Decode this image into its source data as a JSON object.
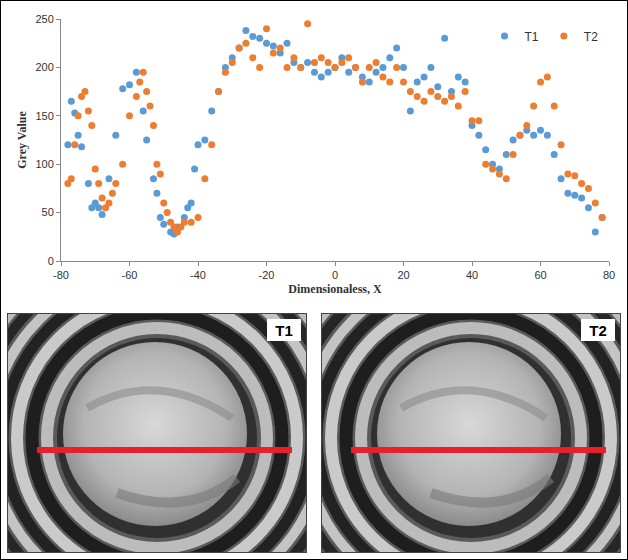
{
  "chart_data": {
    "type": "scatter",
    "xlabel": "Dimensionaless, X",
    "ylabel": "Grey Value",
    "xlim": [
      -80,
      80
    ],
    "xticks": [
      -80,
      -60,
      -40,
      -20,
      0,
      20,
      40,
      60,
      80
    ],
    "ylim": [
      0,
      250
    ],
    "yticks": [
      0,
      50,
      100,
      150,
      200,
      250
    ],
    "grid": false,
    "legend": "upper right",
    "marker": "circle",
    "series": [
      {
        "name": "T1",
        "color": "#5b9bd5",
        "x": [
          -78,
          -77,
          -76,
          -75,
          -74,
          -72,
          -71,
          -70,
          -69,
          -68,
          -66,
          -64,
          -62,
          -60,
          -58,
          -56,
          -55,
          -53,
          -52,
          -51,
          -50,
          -48,
          -47,
          -46,
          -44,
          -43,
          -42,
          -41,
          -40,
          -38,
          -36,
          -34,
          -32,
          -30,
          -28,
          -26,
          -24,
          -22,
          -20,
          -18,
          -16,
          -14,
          -12,
          -10,
          -8,
          -6,
          -4,
          -2,
          0,
          2,
          4,
          6,
          8,
          10,
          12,
          14,
          16,
          18,
          20,
          22,
          24,
          26,
          28,
          30,
          32,
          34,
          36,
          38,
          40,
          42,
          44,
          46,
          48,
          50,
          52,
          54,
          56,
          58,
          60,
          62,
          64,
          66,
          68,
          70,
          72,
          74,
          76,
          78
        ],
        "values": [
          120,
          165,
          153,
          130,
          118,
          80,
          55,
          60,
          55,
          48,
          85,
          130,
          178,
          182,
          195,
          155,
          125,
          85,
          70,
          45,
          38,
          30,
          28,
          35,
          45,
          55,
          60,
          95,
          120,
          125,
          155,
          175,
          200,
          210,
          220,
          238,
          232,
          230,
          225,
          222,
          215,
          225,
          205,
          200,
          205,
          195,
          190,
          195,
          200,
          210,
          195,
          200,
          190,
          185,
          195,
          200,
          210,
          220,
          200,
          155,
          185,
          190,
          200,
          180,
          230,
          175,
          190,
          185,
          140,
          130,
          115,
          100,
          95,
          110,
          125,
          130,
          135,
          130,
          135,
          130,
          110,
          85,
          70,
          68,
          65,
          55,
          30,
          45
        ]
      },
      {
        "name": "T2",
        "color": "#ed7d31",
        "x": [
          -78,
          -77,
          -76,
          -75,
          -74,
          -73,
          -72,
          -71,
          -70,
          -69,
          -68,
          -67,
          -66,
          -65,
          -64,
          -62,
          -60,
          -58,
          -57,
          -56,
          -55,
          -54,
          -53,
          -52,
          -51,
          -50,
          -49,
          -48,
          -47,
          -46,
          -45,
          -44,
          -42,
          -40,
          -38,
          -36,
          -34,
          -32,
          -30,
          -28,
          -26,
          -24,
          -22,
          -20,
          -18,
          -16,
          -14,
          -12,
          -10,
          -8,
          -6,
          -4,
          -2,
          0,
          2,
          4,
          6,
          8,
          10,
          12,
          14,
          16,
          18,
          20,
          22,
          24,
          26,
          28,
          30,
          32,
          34,
          36,
          38,
          40,
          42,
          44,
          46,
          48,
          50,
          52,
          54,
          56,
          58,
          60,
          62,
          64,
          66,
          68,
          70,
          72,
          74,
          76,
          78
        ],
        "values": [
          80,
          85,
          120,
          150,
          170,
          175,
          155,
          140,
          95,
          80,
          65,
          55,
          60,
          70,
          80,
          100,
          150,
          170,
          185,
          195,
          175,
          160,
          140,
          100,
          90,
          60,
          50,
          40,
          35,
          30,
          35,
          40,
          40,
          45,
          85,
          120,
          175,
          195,
          205,
          220,
          225,
          210,
          200,
          240,
          215,
          220,
          200,
          210,
          200,
          245,
          205,
          210,
          205,
          200,
          205,
          210,
          200,
          185,
          200,
          205,
          190,
          185,
          200,
          185,
          175,
          170,
          165,
          175,
          170,
          165,
          170,
          160,
          175,
          145,
          145,
          100,
          95,
          90,
          85,
          110,
          130,
          140,
          160,
          185,
          190,
          160,
          120,
          90,
          88,
          80,
          75,
          60,
          45
        ]
      }
    ]
  },
  "images": [
    {
      "label": "T1"
    },
    {
      "label": "T2"
    }
  ]
}
